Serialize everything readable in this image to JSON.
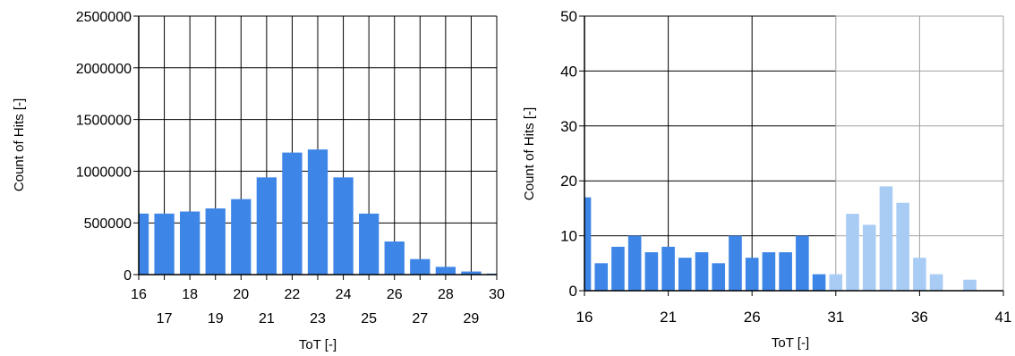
{
  "colors": {
    "bar": "#3d85e6",
    "bar_light": "#a9ccf5",
    "grid_dark": "#000000",
    "grid_light": "#a0a0a0"
  },
  "chart_data": [
    {
      "type": "bar",
      "xlabel": "ToT [-]",
      "ylabel": "Count of Hits [-]",
      "xlim": [
        16,
        30
      ],
      "ylim": [
        0,
        2500000
      ],
      "x_ticks_top_row": [
        "16",
        "18",
        "20",
        "22",
        "24",
        "26",
        "28",
        "30"
      ],
      "x_ticks_bottom_row": [
        "17",
        "19",
        "21",
        "23",
        "25",
        "27",
        "29"
      ],
      "y_ticks": [
        "0",
        "500000",
        "1000000",
        "1500000",
        "2000000",
        "2500000"
      ],
      "grid": true,
      "x": [
        16,
        17,
        18,
        19,
        20,
        21,
        22,
        23,
        24,
        25,
        26,
        27,
        28,
        29,
        30
      ],
      "values": [
        590000,
        590000,
        610000,
        640000,
        730000,
        940000,
        1180000,
        1210000,
        940000,
        590000,
        320000,
        150000,
        75000,
        30000,
        10000
      ]
    },
    {
      "type": "bar",
      "xlabel": "ToT [-]",
      "ylabel": "Count of Hits [-]",
      "xlim": [
        16,
        41
      ],
      "ylim": [
        0,
        50
      ],
      "x_ticks": [
        "16",
        "21",
        "26",
        "31",
        "36",
        "41"
      ],
      "y_ticks": [
        "0",
        "10",
        "20",
        "30",
        "40",
        "50"
      ],
      "grid": true,
      "series": [
        {
          "x": [
            16,
            17,
            18,
            19,
            20,
            21,
            22,
            23,
            24,
            25,
            26,
            27,
            28,
            29,
            30
          ],
          "values": [
            17,
            5,
            8,
            10,
            7,
            8,
            6,
            7,
            5,
            10,
            6,
            7,
            7,
            10,
            3
          ]
        },
        {
          "x": [
            31,
            32,
            33,
            34,
            35,
            36,
            37,
            38,
            39
          ],
          "values": [
            3,
            14,
            12,
            19,
            16,
            6,
            3,
            0,
            2
          ]
        }
      ]
    }
  ]
}
